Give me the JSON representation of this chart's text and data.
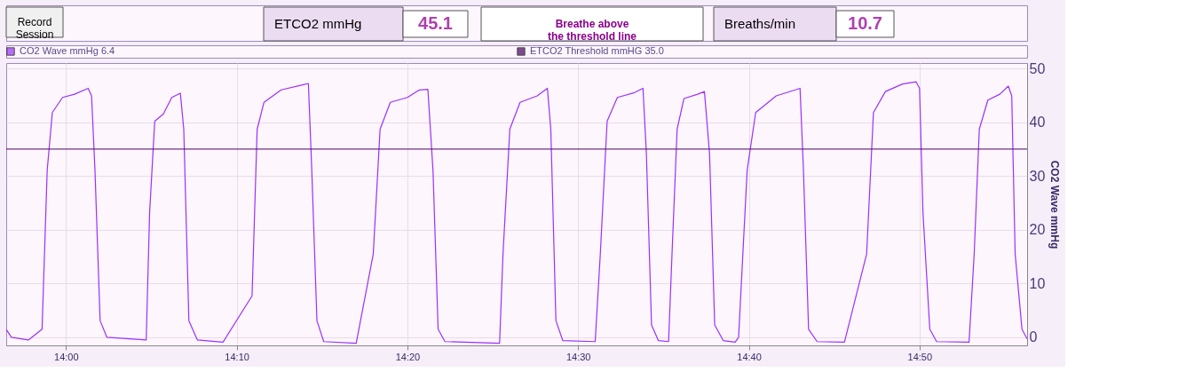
{
  "chart_data": {
    "type": "line",
    "annotations": [
      "Record Session",
      "ETCO2 mmHg",
      "45.1",
      "Breathe above the threshold line",
      "Breaths/min",
      "10.7"
    ],
    "ylabel": "CO2 Wave mmHg",
    "xlim": [
      836.5,
      896.3
    ],
    "xticks": [
      {
        "value": 840,
        "label": "14:00"
      },
      {
        "value": 850,
        "label": "14:10"
      },
      {
        "value": 860,
        "label": "14:20"
      },
      {
        "value": 870,
        "label": "14:30"
      },
      {
        "value": 880,
        "label": "14:40"
      },
      {
        "value": 890,
        "label": "14:50"
      }
    ],
    "ylim": [
      -1.5,
      51
    ],
    "yticks": [
      0,
      10,
      20,
      30,
      40,
      50
    ],
    "grid": true,
    "legend": "top",
    "marker": "none",
    "line_style": "solid",
    "ref_lines": [
      {
        "axis": "y",
        "value": 35,
        "label": "ETCO2 Threshold mmHG 35.0",
        "color": "#4b0066"
      }
    ],
    "series": [
      {
        "name": "CO2 Wave mmHg  6.4",
        "color": "#9b30ff",
        "x": [
          836.5,
          836.8,
          837.8,
          838.6,
          838.9,
          839.2,
          839.8,
          840.5,
          841.3,
          841.5,
          841.7,
          842.0,
          842.4,
          844.7,
          844.9,
          845.2,
          845.7,
          846.2,
          846.7,
          846.9,
          847.2,
          847.7,
          849.2,
          850.9,
          851.2,
          851.6,
          852.6,
          853.8,
          854.2,
          854.4,
          854.7,
          855.1,
          857.0,
          858.0,
          858.4,
          859.0,
          860.0,
          860.7,
          861.2,
          861.5,
          861.8,
          862.2,
          865.4,
          865.6,
          866.0,
          866.6,
          867.6,
          868.2,
          868.4,
          868.7,
          869.1,
          871.0,
          871.3,
          871.7,
          872.3,
          873.3,
          873.8,
          874.0,
          874.3,
          874.7,
          875.3,
          875.5,
          875.8,
          876.2,
          877.0,
          877.4,
          877.7,
          878.0,
          878.5,
          879.2,
          879.4,
          879.9,
          880.4,
          881.6,
          883.0,
          883.2,
          883.5,
          884.0,
          885.6,
          886.9,
          887.3,
          888.0,
          889.0,
          889.8,
          890.0,
          890.2,
          890.6,
          891.0,
          892.9,
          893.2,
          893.5,
          894.0,
          894.7,
          895.2,
          895.4,
          895.6,
          896.0,
          896.3
        ],
        "values": [
          1.5,
          0,
          -0.5,
          1.5,
          31.0,
          41.8,
          44.6,
          45.2,
          46.3,
          44.9,
          31.0,
          3.1,
          0,
          -0.5,
          23.2,
          40.2,
          41.5,
          44.6,
          45.4,
          38.7,
          3.1,
          -0.5,
          -0.9,
          7.7,
          38.7,
          43.7,
          46.0,
          46.9,
          47.2,
          31.0,
          3.1,
          -0.8,
          -1.1,
          15.5,
          38.7,
          43.7,
          44.6,
          46.0,
          46.1,
          31.0,
          1.5,
          -0.8,
          -1.1,
          15.5,
          38.7,
          43.7,
          44.9,
          46.3,
          38.7,
          3.1,
          -0.6,
          -0.8,
          15.5,
          40.2,
          44.6,
          45.5,
          46.3,
          34.1,
          2.3,
          -0.6,
          -0.8,
          15.5,
          38.7,
          44.4,
          45.2,
          45.7,
          34.1,
          2.3,
          -0.6,
          -0.9,
          0,
          31.0,
          41.8,
          44.9,
          46.3,
          31.0,
          1.5,
          -0.8,
          -0.9,
          15.5,
          41.8,
          45.7,
          47.1,
          47.5,
          46.3,
          23.2,
          1.5,
          -0.8,
          -0.9,
          15.5,
          38.7,
          44.1,
          45.2,
          46.7,
          44.9,
          15.5,
          1.5,
          -0.3
        ]
      }
    ]
  }
}
